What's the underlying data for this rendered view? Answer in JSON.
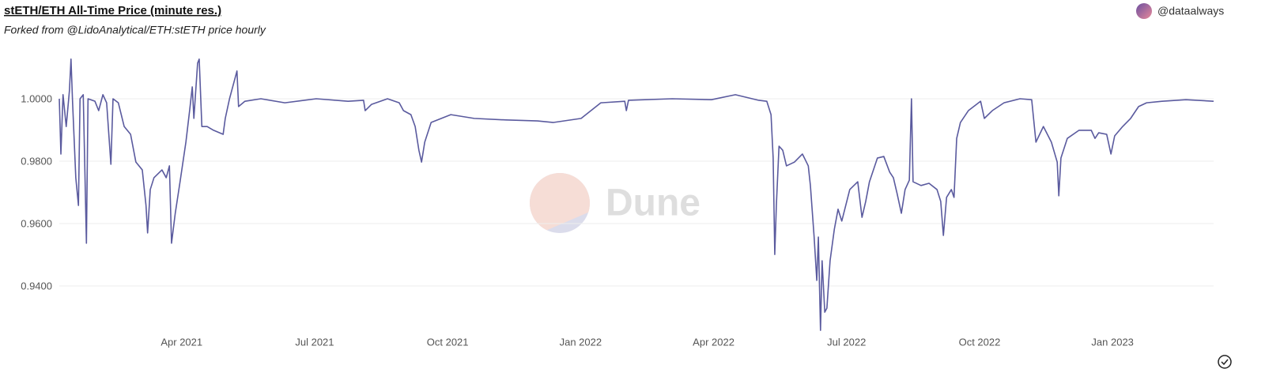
{
  "chart_data": {
    "type": "line",
    "title": "stETH/ETH All-Time Price (minute res.)",
    "subtitle": "Forked from @LidoAnalytical/ETH:stETH price hourly",
    "author": "@dataalways",
    "watermark": "Dune",
    "color": "#5a5a9e",
    "grid": true,
    "xlim": [
      2021.02,
      2023.19
    ],
    "ylim": [
      0.925,
      1.015
    ],
    "xticks": [
      {
        "value": 2021.25,
        "label": "Apr 2021"
      },
      {
        "value": 2021.5,
        "label": "Jul 2021"
      },
      {
        "value": 2021.75,
        "label": "Oct 2021"
      },
      {
        "value": 2022.0,
        "label": "Jan 2022"
      },
      {
        "value": 2022.25,
        "label": "Apr 2022"
      },
      {
        "value": 2022.5,
        "label": "Jul 2022"
      },
      {
        "value": 2022.75,
        "label": "Oct 2022"
      },
      {
        "value": 2023.0,
        "label": "Jan 2023"
      }
    ],
    "yticks": [
      {
        "value": 0.94,
        "label": "0.9400"
      },
      {
        "value": 0.96,
        "label": "0.9600"
      },
      {
        "value": 0.98,
        "label": "0.9800"
      },
      {
        "value": 1.0,
        "label": "1.0000"
      }
    ],
    "x": [
      2021.02,
      2021.023,
      2021.027,
      2021.033,
      2021.039,
      2021.042,
      2021.045,
      2021.051,
      2021.056,
      2021.059,
      2021.065,
      2021.071,
      2021.074,
      2021.087,
      2021.094,
      2021.102,
      2021.109,
      2021.117,
      2021.121,
      2021.131,
      2021.142,
      2021.154,
      2021.164,
      2021.176,
      2021.183,
      2021.186,
      2021.191,
      2021.198,
      2021.213,
      2021.221,
      2021.227,
      2021.231,
      2021.238,
      2021.247,
      2021.258,
      2021.265,
      2021.27,
      2021.273,
      2021.28,
      2021.283,
      2021.288,
      2021.298,
      2021.31,
      2021.328,
      2021.332,
      2021.34,
      2021.354,
      2021.357,
      2021.369,
      2021.399,
      2021.444,
      2021.503,
      2021.563,
      2021.592,
      2021.595,
      2021.607,
      2021.637,
      2021.659,
      2021.667,
      2021.681,
      2021.689,
      2021.696,
      2021.701,
      2021.707,
      2021.719,
      2021.756,
      2021.8,
      2021.86,
      2021.919,
      2021.949,
      2022.001,
      2022.038,
      2022.083,
      2022.086,
      2022.09,
      2022.172,
      2022.246,
      2022.291,
      2022.335,
      2022.35,
      2022.358,
      2022.362,
      2022.365,
      2022.368,
      2022.373,
      2022.38,
      2022.387,
      2022.402,
      2022.417,
      2022.428,
      2022.432,
      2022.439,
      2022.444,
      2022.447,
      2022.451,
      2022.454,
      2022.459,
      2022.463,
      2022.469,
      2022.477,
      2022.484,
      2022.491,
      2022.506,
      2022.521,
      2022.529,
      2022.536,
      2022.543,
      2022.558,
      2022.57,
      2022.581,
      2022.588,
      2022.595,
      2022.603,
      2022.61,
      2022.618,
      2022.622,
      2022.625,
      2022.64,
      2022.655,
      2022.67,
      2022.677,
      2022.682,
      2022.688,
      2022.697,
      2022.702,
      2022.707,
      2022.714,
      2022.729,
      2022.752,
      2022.759,
      2022.774,
      2022.796,
      2022.826,
      2022.848,
      2022.856,
      2022.87,
      2022.885,
      2022.896,
      2022.899,
      2022.903,
      2022.915,
      2022.937,
      2022.96,
      2022.967,
      2022.974,
      2022.989,
      2022.997,
      2023.004,
      2023.019,
      2023.034,
      2023.049,
      2023.064,
      2023.093,
      2023.138,
      2023.19
    ],
    "values": [
      1.0,
      0.9823,
      1.0013,
      0.9911,
      1.0025,
      1.0127,
      0.9987,
      0.9747,
      0.9658,
      1.0,
      1.0013,
      0.9537,
      1.0,
      0.9992,
      0.9962,
      1.0013,
      0.9987,
      0.979,
      1.0,
      0.9987,
      0.9911,
      0.9886,
      0.9797,
      0.9772,
      0.9658,
      0.957,
      0.9709,
      0.9747,
      0.9772,
      0.9747,
      0.9785,
      0.9537,
      0.9633,
      0.9734,
      0.9861,
      0.9962,
      1.0038,
      0.9937,
      1.0114,
      1.0127,
      0.9911,
      0.9911,
      0.9899,
      0.9886,
      0.9937,
      1.0,
      1.0089,
      0.9975,
      0.9992,
      1.0,
      0.9987,
      1.0,
      0.9992,
      0.9995,
      0.9962,
      0.9982,
      1.0,
      0.9987,
      0.9962,
      0.9949,
      0.9911,
      0.9835,
      0.9797,
      0.9861,
      0.9924,
      0.9949,
      0.9937,
      0.9932,
      0.9929,
      0.9924,
      0.9937,
      0.9987,
      0.9992,
      0.9962,
      0.9995,
      1.0,
      0.9997,
      1.0013,
      0.9995,
      0.9992,
      0.9949,
      0.981,
      0.9501,
      0.9658,
      0.9848,
      0.9835,
      0.9785,
      0.9797,
      0.9823,
      0.9785,
      0.9722,
      0.9557,
      0.9418,
      0.9557,
      0.9258,
      0.9481,
      0.9316,
      0.9329,
      0.9481,
      0.9582,
      0.9646,
      0.9608,
      0.9709,
      0.9734,
      0.962,
      0.9671,
      0.9734,
      0.981,
      0.9815,
      0.9765,
      0.9747,
      0.9696,
      0.9633,
      0.9709,
      0.9739,
      1.0,
      0.9734,
      0.9722,
      0.9729,
      0.9709,
      0.9671,
      0.9562,
      0.9684,
      0.9709,
      0.9684,
      0.9873,
      0.9924,
      0.9962,
      0.9992,
      0.9937,
      0.9962,
      0.9987,
      1.0,
      0.9997,
      0.9861,
      0.9911,
      0.9861,
      0.9797,
      0.9689,
      0.981,
      0.9873,
      0.9899,
      0.9899,
      0.9873,
      0.9891,
      0.9886,
      0.9823,
      0.9881,
      0.9911,
      0.9937,
      0.9975,
      0.9987,
      0.9992,
      0.9997,
      0.9992
    ]
  }
}
